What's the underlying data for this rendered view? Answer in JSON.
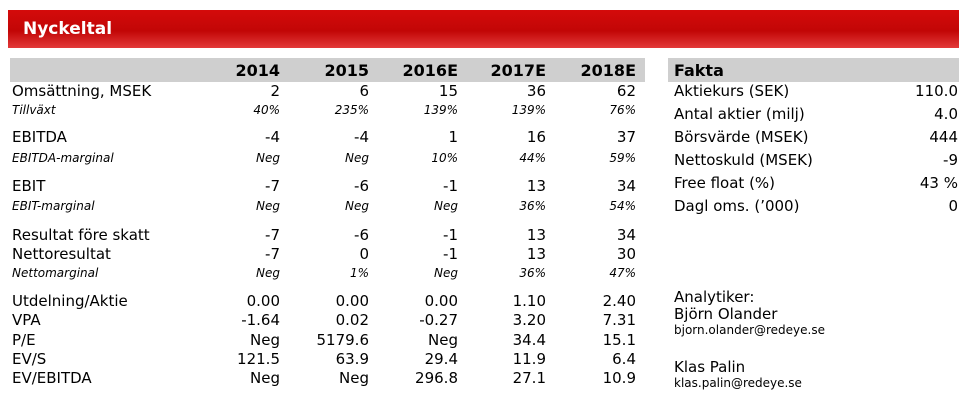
{
  "title": "Nyckeltal",
  "years": [
    "2014",
    "2015",
    "2016E",
    "2017E",
    "2018E"
  ],
  "rows": [
    {
      "label": "Omsättning, MSEK",
      "values": [
        "2",
        "6",
        "15",
        "36",
        "62"
      ]
    },
    {
      "label": "Tillväxt",
      "values": [
        "40%",
        "235%",
        "139%",
        "139%",
        "76%"
      ]
    },
    {
      "label": "EBITDA",
      "values": [
        "-4",
        "-4",
        "1",
        "16",
        "37"
      ]
    },
    {
      "label": "EBITDA-marginal",
      "values": [
        "Neg",
        "Neg",
        "10%",
        "44%",
        "59%"
      ]
    },
    {
      "label": "EBIT",
      "values": [
        "-7",
        "-6",
        "-1",
        "13",
        "34"
      ]
    },
    {
      "label": "EBIT-marginal",
      "values": [
        "Neg",
        "Neg",
        "Neg",
        "36%",
        "54%"
      ]
    },
    {
      "label": "Resultat före skatt",
      "values": [
        "-7",
        "-6",
        "-1",
        "13",
        "34"
      ]
    },
    {
      "label": "Nettoresultat",
      "values": [
        "-7",
        "0",
        "-1",
        "13",
        "30"
      ]
    },
    {
      "label": "Nettomarginal",
      "values": [
        "Neg",
        "1%",
        "Neg",
        "36%",
        "47%"
      ]
    },
    {
      "label": "Utdelning/Aktie",
      "values": [
        "0.00",
        "0.00",
        "0.00",
        "1.10",
        "2.40"
      ]
    },
    {
      "label": "VPA",
      "values": [
        "-1.64",
        "0.02",
        "-0.27",
        "3.20",
        "7.31"
      ]
    },
    {
      "label": "P/E",
      "values": [
        "Neg",
        "5179.6",
        "Neg",
        "34.4",
        "15.1"
      ]
    },
    {
      "label": "EV/S",
      "values": [
        "121.5",
        "63.9",
        "29.4",
        "11.9",
        "6.4"
      ]
    },
    {
      "label": "EV/EBITDA",
      "values": [
        "Neg",
        "Neg",
        "296.8",
        "27.1",
        "10.9"
      ]
    }
  ],
  "fakta": {
    "title": "Fakta",
    "items": [
      {
        "label": "Aktiekurs (SEK)",
        "value": "110.0"
      },
      {
        "label": "Antal aktier (milj)",
        "value": "4.0"
      },
      {
        "label": "Börsvärde (MSEK)",
        "value": "444"
      },
      {
        "label": "Nettoskuld (MSEK)",
        "value": "-9"
      },
      {
        "label": "Free float (%)",
        "value": "43 %"
      },
      {
        "label": "Dagl oms. (’000)",
        "value": "0"
      }
    ]
  },
  "analysts": {
    "heading": "Analytiker:",
    "people": [
      {
        "name": "Björn Olander",
        "email": "bjorn.olander@redeye.se"
      },
      {
        "name": "Klas Palin",
        "email": "klas.palin@redeye.se"
      }
    ]
  }
}
